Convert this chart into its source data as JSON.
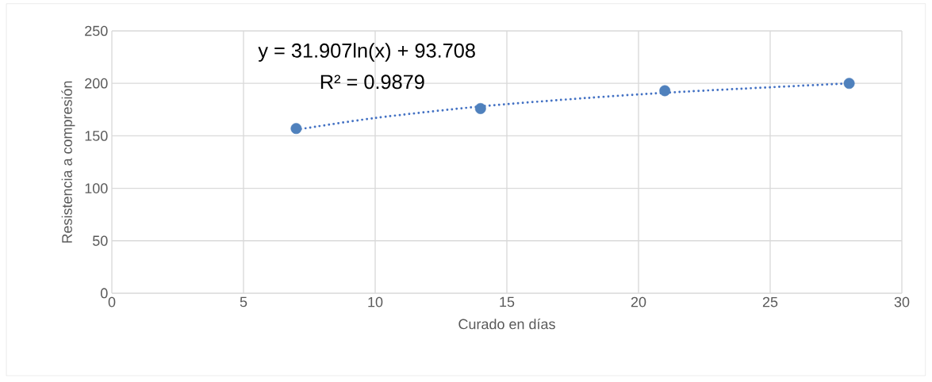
{
  "chart_data": {
    "type": "scatter",
    "xlabel": "Curado en días",
    "ylabel": "Resistencia  a compresión",
    "xlim": [
      0,
      30
    ],
    "xticks": [
      0,
      5,
      10,
      15,
      20,
      25,
      30
    ],
    "ylim": [
      0,
      250
    ],
    "yticks": [
      0,
      50,
      100,
      150,
      200,
      250
    ],
    "grid": true,
    "series": [
      {
        "type": "line",
        "color": "#4472c4",
        "line_style": "dotted",
        "marker": "none",
        "x": [
          7,
          10,
          14,
          18,
          21,
          24,
          28
        ],
        "values": [
          155.8,
          167,
          178,
          186,
          191,
          195,
          200
        ]
      },
      {
        "color": "#4f81bd",
        "marker": "circle",
        "x": [
          7,
          14,
          21,
          28
        ],
        "values": [
          157,
          176,
          193,
          200
        ]
      }
    ],
    "annotations": [
      "y = 31.907ln(x) + 93.708",
      "R² = 0.9879"
    ]
  }
}
